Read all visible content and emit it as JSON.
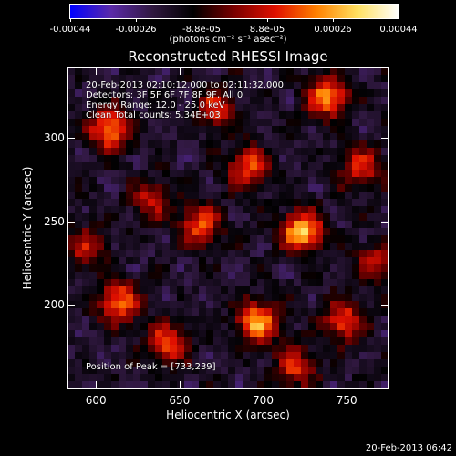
{
  "colorbar": {
    "tick_labels": [
      "-0.00044",
      "-0.00026",
      "-8.8e-05",
      "8.8e-05",
      "0.00026",
      "0.00044"
    ],
    "units": "(photons cm⁻² s⁻¹ asec⁻²)",
    "min": -0.00044,
    "max": 0.00044,
    "colors": [
      "#0000ff",
      "#5b2aa8",
      "#301840",
      "#000000",
      "#7a0000",
      "#e01000",
      "#ff8000",
      "#ffe060",
      "#ffffff"
    ]
  },
  "plot": {
    "title": "Reconstructed RHESSI Image",
    "info_lines": [
      "20-Feb-2013 02:10:12.000 to 02:11:32.000",
      "Detectors: 3F 5F 6F 7F 8F 9F, All 0",
      "Energy Range: 12.0 - 25.0 keV",
      "Clean     Total counts: 5.34E+03"
    ],
    "peak_text": "Position of Peak = [733,239]",
    "xlabel": "Heliocentric X (arcsec)",
    "ylabel": "Heliocentric Y (arcsec)",
    "xticks": [
      "600",
      "650",
      "700",
      "750"
    ],
    "yticks": [
      "200",
      "250",
      "300"
    ],
    "xlim": [
      583,
      775
    ],
    "ylim": [
      150,
      342
    ]
  },
  "footer": {
    "timestamp": "20-Feb-2013 06:42"
  }
}
